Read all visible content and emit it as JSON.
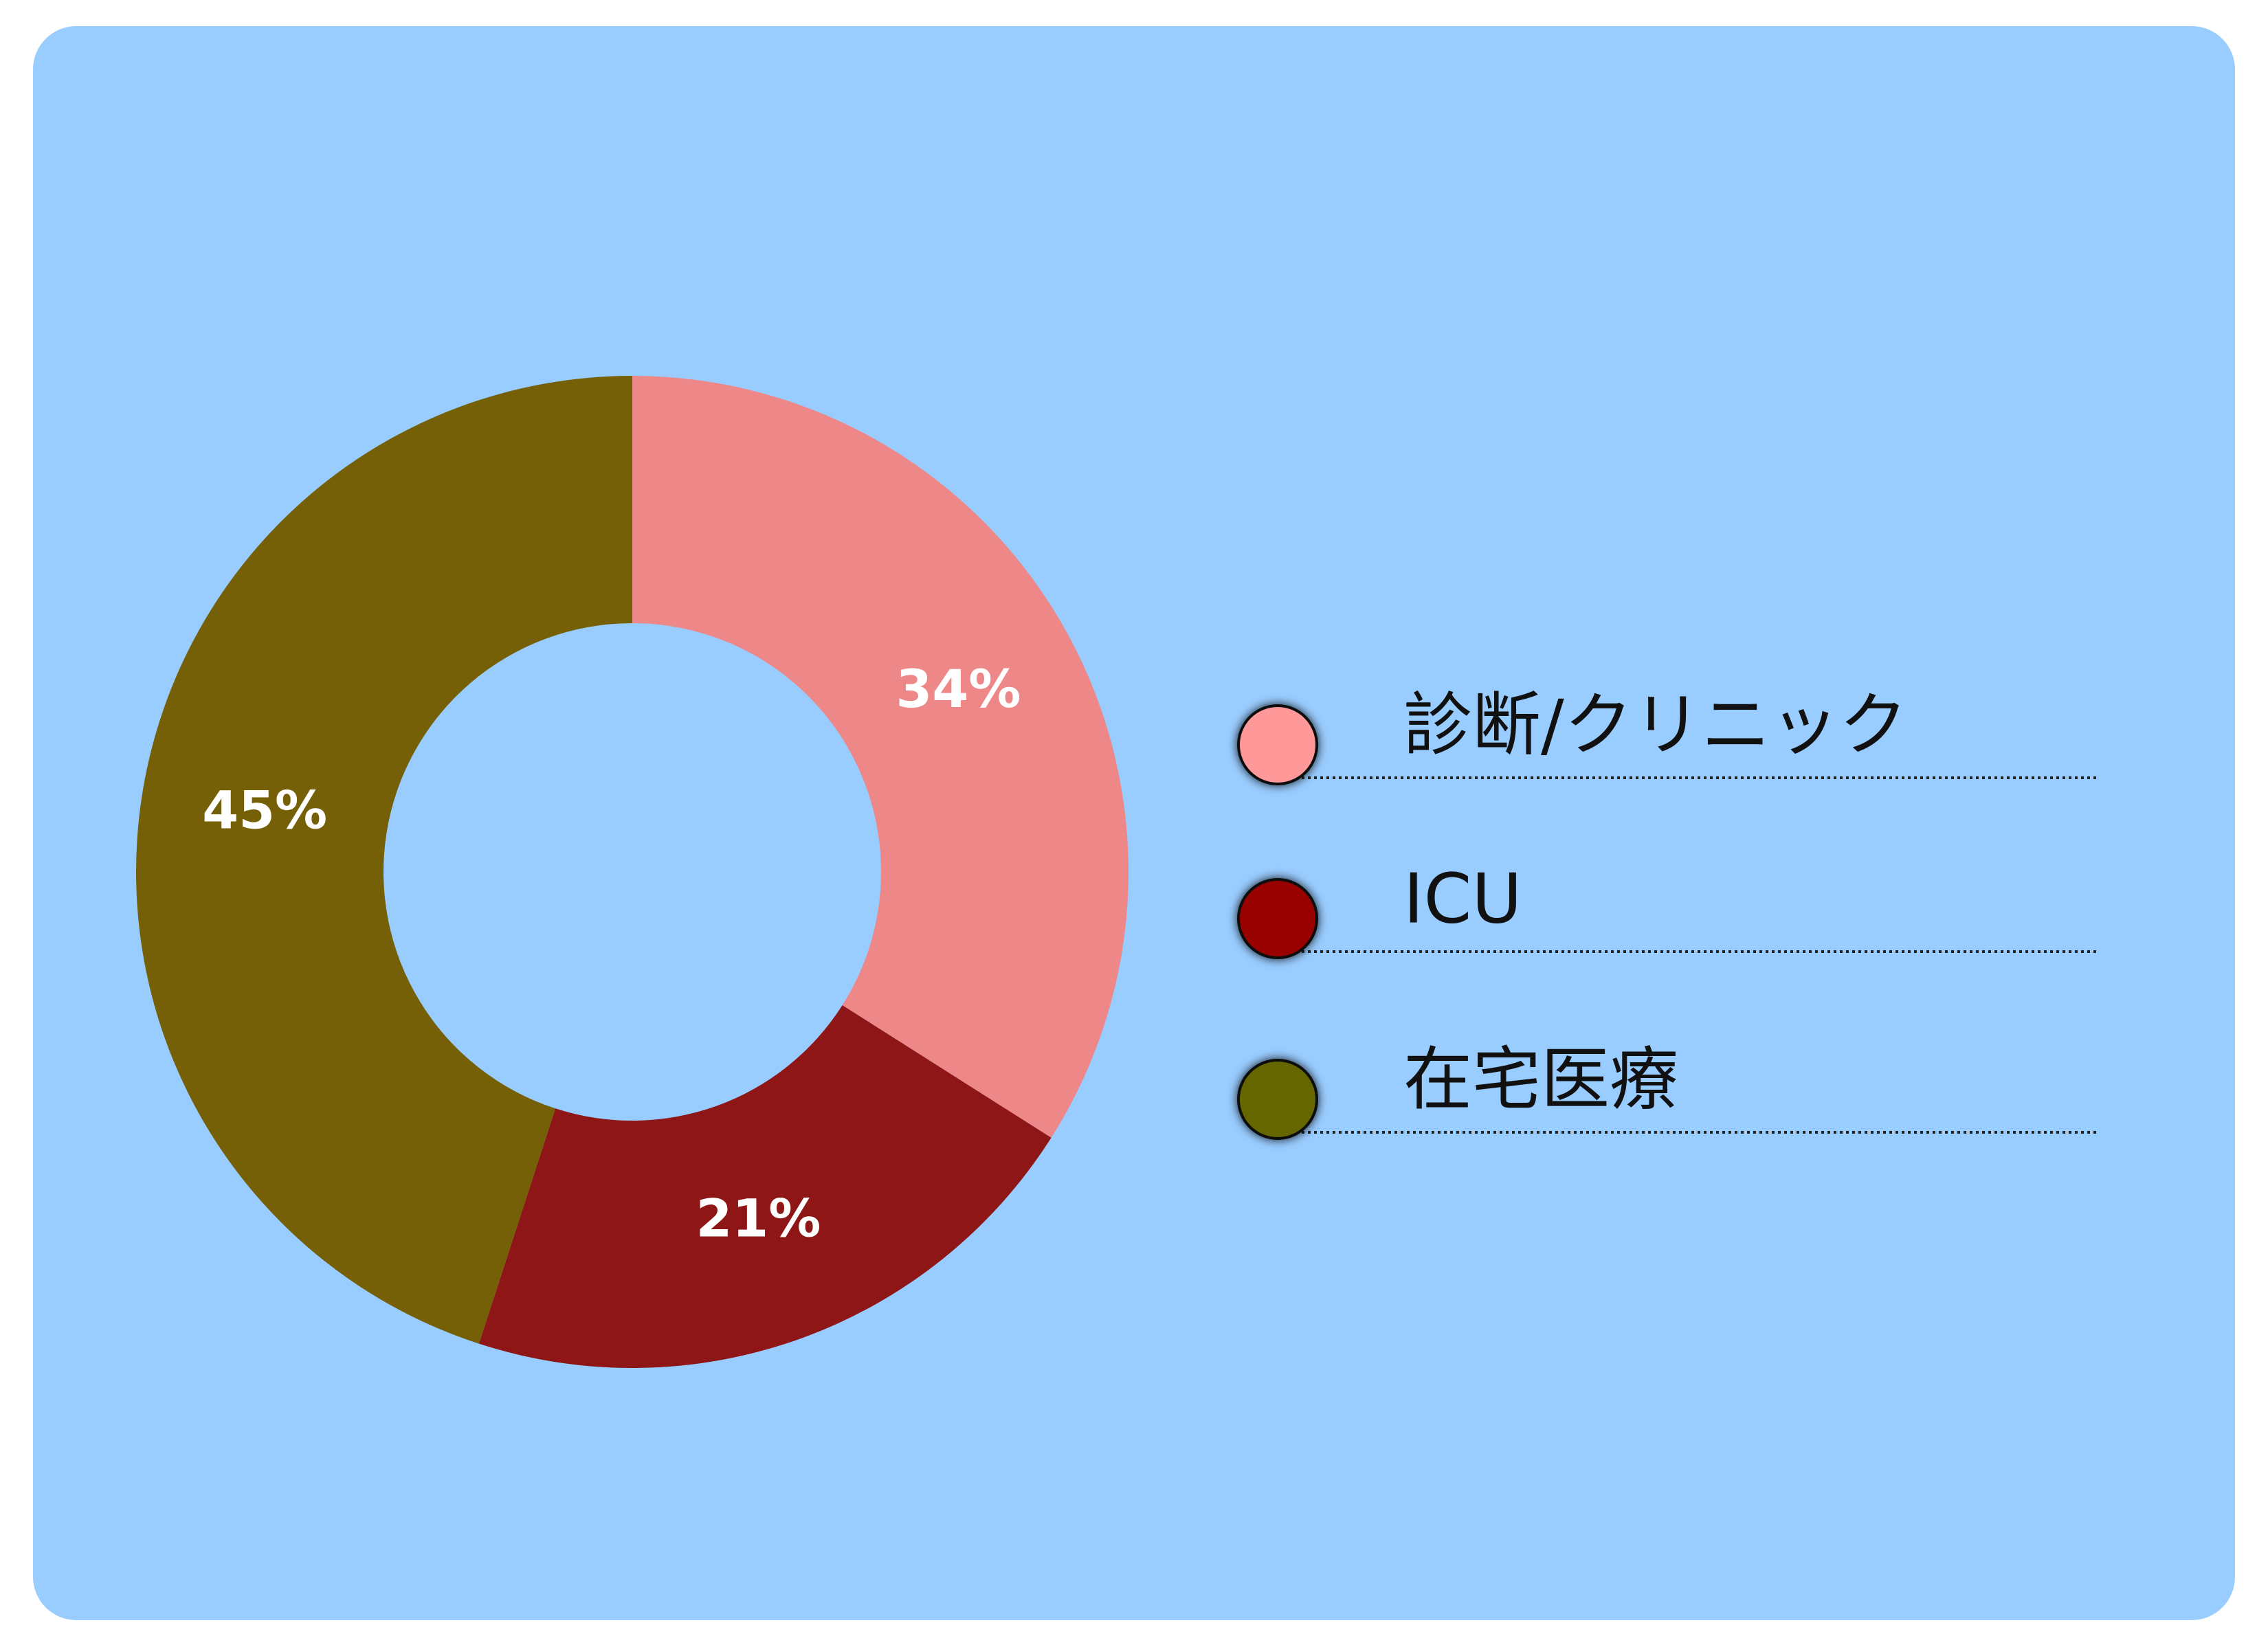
{
  "chart_data": {
    "type": "donut",
    "categories": [
      "診断/クリニック",
      "ICU",
      "在宅医療"
    ],
    "values": [
      34,
      21,
      45
    ],
    "value_labels": [
      "34%",
      "21%",
      "45%"
    ],
    "colors": [
      "#ee8888",
      "#8e1616",
      "#756008"
    ],
    "legend_colors": [
      "#ff9999",
      "#990000",
      "#666600"
    ]
  }
}
